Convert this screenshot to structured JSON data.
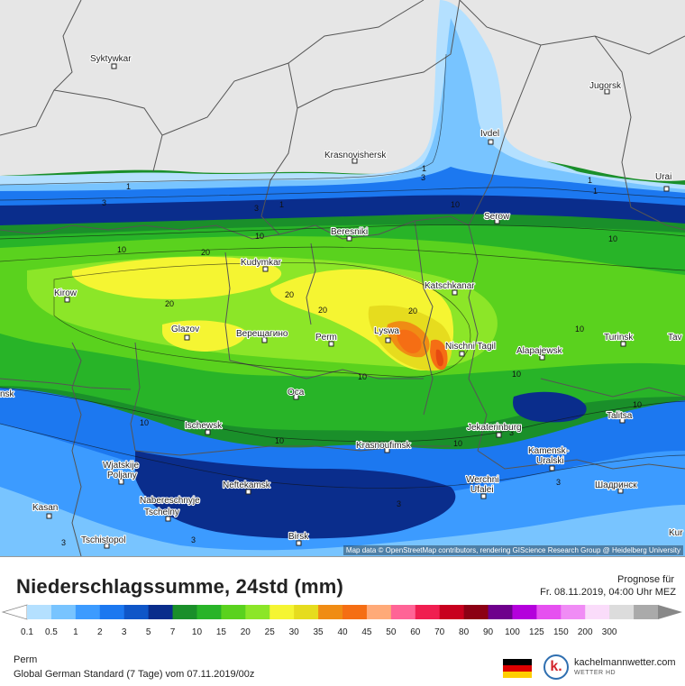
{
  "map": {
    "credit": "Map data © OpenStreetMap contributors, rendering GIScience Research Group @ Heidelberg University",
    "cities": [
      {
        "name": "Syktywkar"
      },
      {
        "name": "Jugorsk"
      },
      {
        "name": "Ivdel"
      },
      {
        "name": "Krasnovishersk"
      },
      {
        "name": "Urai"
      },
      {
        "name": "Beresniki"
      },
      {
        "name": "Serow"
      },
      {
        "name": "Kudymkar"
      },
      {
        "name": "Katschkanar"
      },
      {
        "name": "Kirow"
      },
      {
        "name": "Glazov"
      },
      {
        "name": "Верещагино"
      },
      {
        "name": "Perm"
      },
      {
        "name": "Lyswa"
      },
      {
        "name": "Nischni Tagil"
      },
      {
        "name": "Alapajewsk"
      },
      {
        "name": "Turinsk"
      },
      {
        "name": "Tav"
      },
      {
        "name": "Oca"
      },
      {
        "name": "Talitsa"
      },
      {
        "name": "Ischewsk"
      },
      {
        "name": "Jekaterinburg"
      },
      {
        "name": "Krasnoufimsk"
      },
      {
        "name": "Kamensk-"
      },
      {
        "name": "Uralski"
      },
      {
        "name": "Wjatskije"
      },
      {
        "name": "Poljany"
      },
      {
        "name": "Neftekamsk"
      },
      {
        "name": "Werchni"
      },
      {
        "name": "Ufalei"
      },
      {
        "name": "Шадринск"
      },
      {
        "name": "Nabereschnyje"
      },
      {
        "name": "Tschelny"
      },
      {
        "name": "Kasan"
      },
      {
        "name": "Tschistopol"
      },
      {
        "name": "Birsk"
      },
      {
        "name": "Kur"
      },
      {
        "name": "nsk"
      }
    ],
    "contour_labels": [
      "1",
      "1",
      "3",
      "1",
      "3",
      "1",
      "1",
      "3",
      "10",
      "10",
      "10",
      "10",
      "20",
      "20",
      "20",
      "20",
      "20",
      "10",
      "10",
      "10",
      "10",
      "10",
      "10",
      "3",
      "3",
      "3",
      "3",
      "10",
      "3"
    ]
  },
  "footer": {
    "title": "Niederschlagssumme, 24std (mm)",
    "forecast_caption": "Prognose für",
    "forecast_date": "Fr. 08.11.2019, 04:00 Uhr MEZ",
    "location": "Perm",
    "model_run": "Global German Standard (7 Tage) vom 07.11.2019/00z",
    "logo_name": "kachelmannwetter.com",
    "logo_sub": "WETTER HD",
    "logo_letter": "k."
  },
  "legend": {
    "labels": [
      "0.1",
      "0.5",
      "1",
      "2",
      "3",
      "5",
      "7",
      "10",
      "15",
      "20",
      "25",
      "30",
      "35",
      "40",
      "45",
      "50",
      "60",
      "70",
      "80",
      "90",
      "100",
      "125",
      "150",
      "200",
      "300"
    ],
    "colors": [
      "#b4e0ff",
      "#78c4ff",
      "#3c9bff",
      "#1c78f0",
      "#0f56c8",
      "#0a2d8c",
      "#1a8f2a",
      "#28b428",
      "#5ad21e",
      "#8ce628",
      "#f5f532",
      "#e6dc1e",
      "#f08c14",
      "#f56e14",
      "#ffaa78",
      "#ff6496",
      "#f01e50",
      "#c8001e",
      "#8c0014",
      "#6e008c",
      "#b400dc",
      "#e650f0",
      "#f08cf5",
      "#fadcfa",
      "#dcdcdc",
      "#aaaaaa"
    ]
  }
}
